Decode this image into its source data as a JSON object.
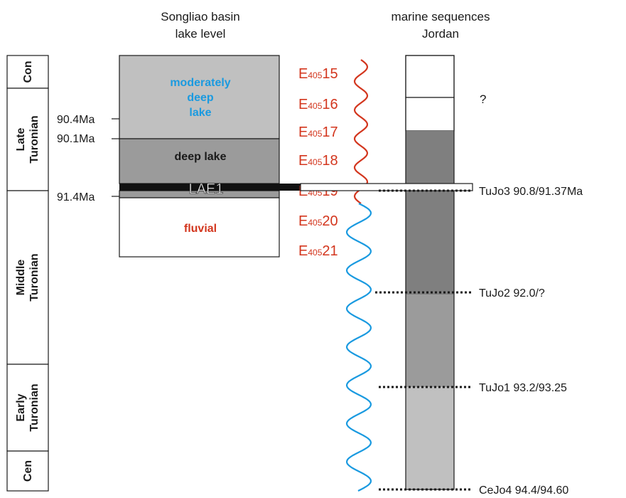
{
  "headers": {
    "songliao": [
      "Songliao basin",
      "lake level"
    ],
    "jordan": [
      "marine sequences",
      "Jordan"
    ]
  },
  "stages": [
    {
      "id": "con",
      "lines": [
        "Con"
      ]
    },
    {
      "id": "late-turonian",
      "lines": [
        "Late",
        "Turonian"
      ]
    },
    {
      "id": "middle-turonian",
      "lines": [
        "Middle",
        "Turonian"
      ]
    },
    {
      "id": "early-turonian",
      "lines": [
        "Early",
        "Turonian"
      ]
    },
    {
      "id": "cen",
      "lines": [
        "Cen"
      ]
    }
  ],
  "ages": [
    "90.4Ma",
    "90.1Ma",
    "91.4Ma"
  ],
  "lake_units": [
    {
      "id": "moderately-deep-lake",
      "lines": [
        "moderately",
        "deep",
        "lake"
      ],
      "fill": "#c0c0c0",
      "text_color": "#1a9ae0"
    },
    {
      "id": "deep-lake",
      "lines": [
        "deep lake"
      ],
      "fill": "#9b9b9b",
      "text_color": "#1a1a1a"
    },
    {
      "id": "fluvial",
      "lines": [
        "fluvial"
      ],
      "fill": "#ffffff",
      "text_color": "#d3361e"
    }
  ],
  "lae_label": "LAE1",
  "cycle_prefix": "E",
  "cycles": [
    {
      "sub": "405",
      "num": "15"
    },
    {
      "sub": "405",
      "num": "16"
    },
    {
      "sub": "405",
      "num": "17"
    },
    {
      "sub": "405",
      "num": "18"
    },
    {
      "sub": "405",
      "num": "19"
    },
    {
      "sub": "405",
      "num": "20"
    },
    {
      "sub": "405",
      "num": "21"
    }
  ],
  "question_mark": "?",
  "sequences": [
    {
      "id": "tujo3",
      "label": "TuJo3 90.8/91.37Ma"
    },
    {
      "id": "tujo2",
      "label": "TuJo2 92.0/?"
    },
    {
      "id": "tujo1",
      "label": "TuJo1 93.2/93.25"
    },
    {
      "id": "cejo4",
      "label": "CeJo4 94.4/94.60"
    }
  ],
  "colors": {
    "cycle_red": "#d3361e",
    "wave_blue": "#1a9ae0",
    "dark_gray": "#7f7f7f",
    "light_gray": "#c0c0c0",
    "mid_gray": "#9b9b9b",
    "black": "#1a1a1a"
  }
}
